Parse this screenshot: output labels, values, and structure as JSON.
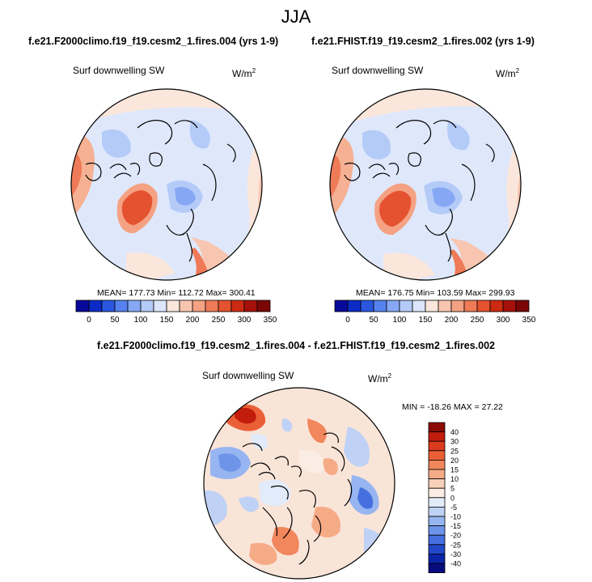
{
  "title": "JJA",
  "panels": [
    {
      "case": "f.e21.F2000climo.f19_f19.cesm2_1.fires.004 (yrs 1-9)",
      "variable": "Surf downwelling SW",
      "units_base": "W/m",
      "units_exp": "2",
      "stats": "MEAN= 177.73  Min= 112.72  Max= 300.41"
    },
    {
      "case": "f.e21.FHIST.f19_f19.cesm2_1.fires.002 (yrs 1-9)",
      "variable": "Surf downwelling SW",
      "units_base": "W/m",
      "units_exp": "2",
      "stats": "MEAN= 176.75  Min= 103.59  Max= 299.93"
    }
  ],
  "abs_colorbar": {
    "labels": [
      "0",
      "50",
      "100",
      "150",
      "200",
      "250",
      "300",
      "350"
    ],
    "colors": [
      "#08089a",
      "#0c2bc6",
      "#2a56e0",
      "#5582ee",
      "#86a8f4",
      "#b4cbf8",
      "#dbe6fb",
      "#fbe6dc",
      "#f8c6b0",
      "#f4a283",
      "#ee7a57",
      "#e45230",
      "#cc2a12",
      "#a5110a",
      "#7a0606"
    ]
  },
  "difference": {
    "title": "f.e21.F2000climo.f19_f19.cesm2_1.fires.004 - f.e21.FHIST.f19_f19.cesm2_1.fires.002",
    "variable": "Surf downwelling SW",
    "units_base": "W/m",
    "units_exp": "2",
    "stats": "MIN = -18.26 MAX =  27.22",
    "colorbar_labels": [
      "40",
      "30",
      "25",
      "20",
      "15",
      "10",
      "5",
      "0",
      "-5",
      "-10",
      "-15",
      "-20",
      "-25",
      "-30",
      "-40"
    ],
    "colorbar_colors": [
      "#8b0a05",
      "#c21c0d",
      "#dc3a1c",
      "#eb5f36",
      "#f2865c",
      "#f6ab87",
      "#f9d0b9",
      "#fbede3",
      "#e2ebf9",
      "#bfd2f5",
      "#97b5f0",
      "#6e94e9",
      "#4670df",
      "#2248c9",
      "#0a25a8",
      "#060b7e"
    ]
  }
}
